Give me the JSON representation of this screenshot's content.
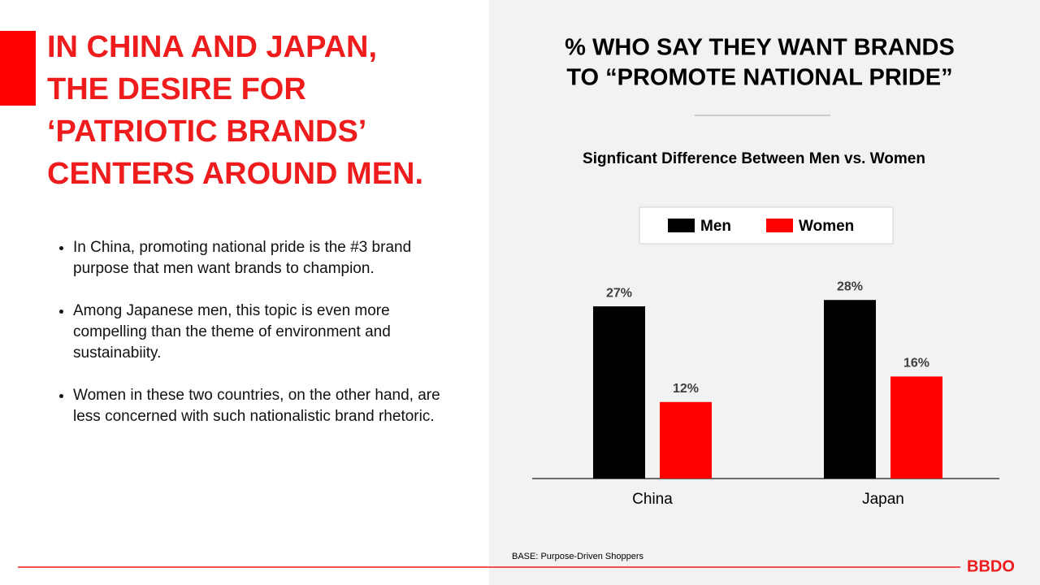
{
  "slide": {
    "headline": [
      "IN CHINA AND JAPAN,",
      "THE DESIRE FOR",
      "‘PATRIOTIC BRANDS’",
      "CENTERS AROUND MEN."
    ],
    "bullets": [
      "In China, promoting national pride is the #3 brand purpose that men want brands to champion.",
      "Among Japanese men, this topic is even more compelling than the theme of environment and sustainabiity.",
      "Women in these two countries, on the other hand, are less concerned with such nationalistic brand rhetoric."
    ],
    "base_note": "BASE: Purpose-Driven Shoppers",
    "logo": "BBDO"
  },
  "chart_data": {
    "type": "bar",
    "title": [
      "% WHO SAY THEY WANT BRANDS",
      "TO “PROMOTE NATIONAL PRIDE”"
    ],
    "subtitle": "Signficant Difference Between Men vs. Women",
    "categories": [
      "China",
      "Japan"
    ],
    "series": [
      {
        "name": "Men",
        "color": "#000000",
        "values": [
          27,
          28
        ],
        "value_labels": [
          "27%",
          "28%"
        ]
      },
      {
        "name": "Women",
        "color": "#ff0000",
        "values": [
          12,
          16
        ],
        "value_labels": [
          "12%",
          "16%"
        ]
      }
    ],
    "legend": "top"
  }
}
